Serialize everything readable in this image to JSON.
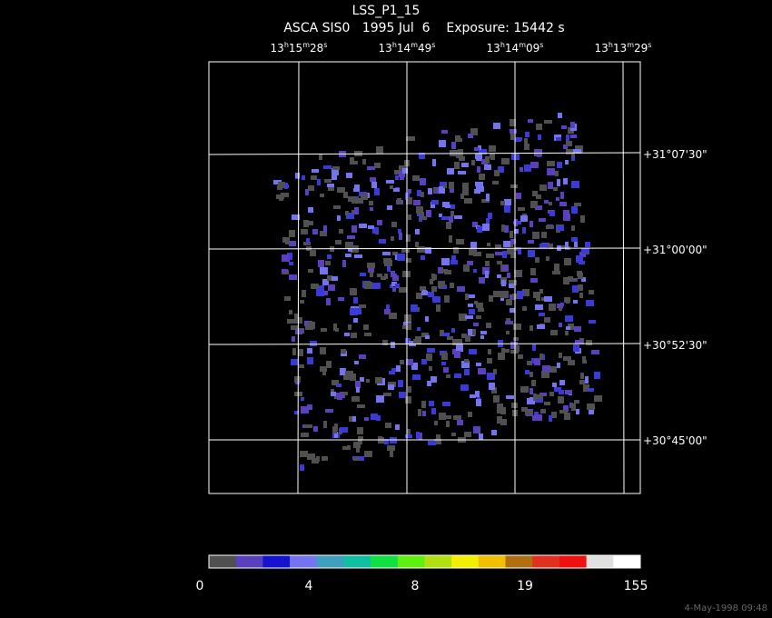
{
  "header": {
    "title": "LSS_P1_15",
    "subtitle": "ASCA SIS0   1995 Jul  6    Exposure: 15442 s"
  },
  "ra_labels": [
    [
      "13",
      "h",
      "15",
      "m",
      "28",
      "s"
    ],
    [
      "13",
      "h",
      "14",
      "m",
      "49",
      "s"
    ],
    [
      "13",
      "h",
      "14",
      "m",
      "09",
      "s"
    ],
    [
      "13",
      "h",
      "13",
      "m",
      "29",
      "s"
    ]
  ],
  "dec_labels": [
    "+31°07'30\"",
    "+31°00'00\"",
    "+30°52'30\"",
    "+30°45'00\""
  ],
  "colorbar": {
    "colors": [
      "#505050",
      "#5a3fbf",
      "#1414d0",
      "#7474f0",
      "#3f9fbf",
      "#10c0a0",
      "#10e040",
      "#60f010",
      "#b0e010",
      "#f0f000",
      "#f0c000",
      "#b07010",
      "#e03020",
      "#f01010",
      "#e0e0e0",
      "#ffffff"
    ],
    "labels": [
      0,
      4,
      8,
      19,
      155
    ]
  },
  "timestamp": "4-May-1998 09:48"
}
